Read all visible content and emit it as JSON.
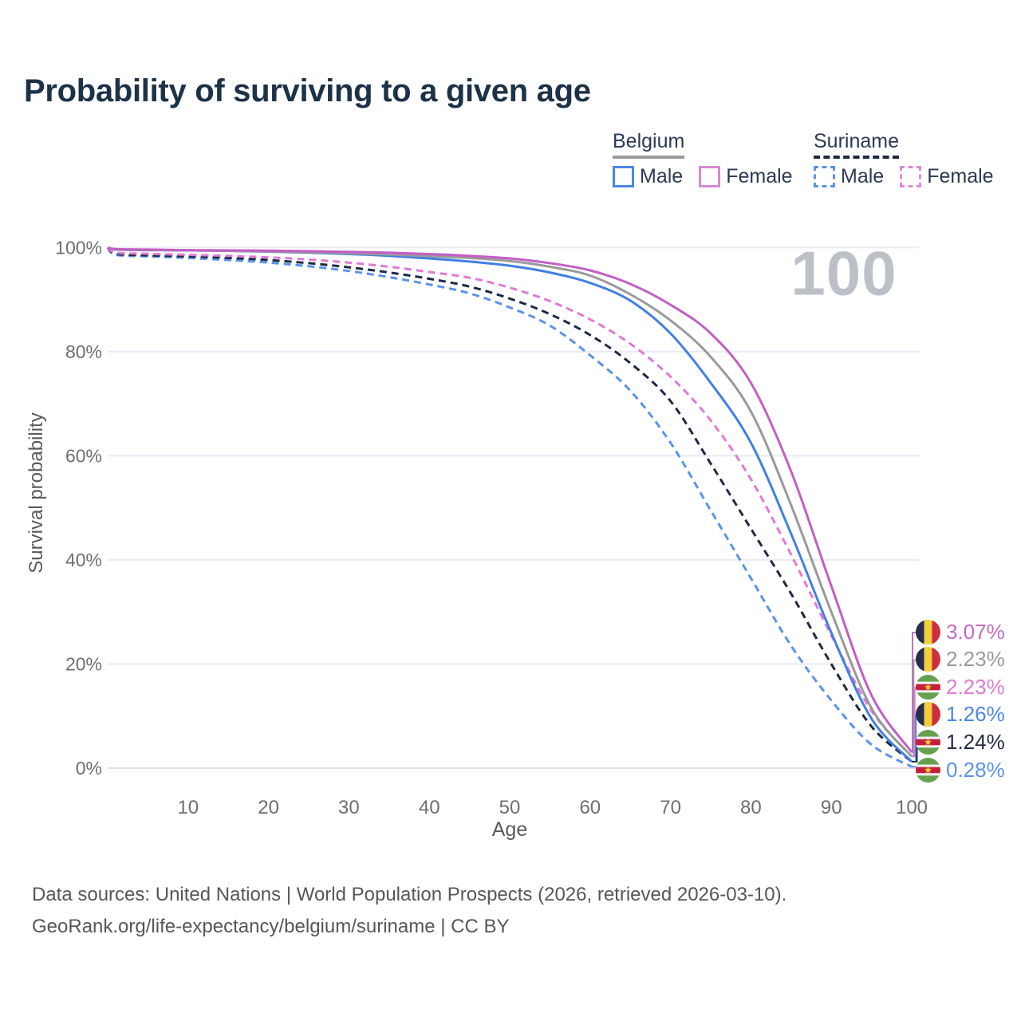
{
  "title": "Probability of surviving to a given age",
  "watermark": "100",
  "legend": {
    "groups": [
      {
        "country": "Belgium",
        "line_style": "solid",
        "underline_color": "#9a9a9a",
        "items": [
          {
            "label": "Male",
            "color": "#4a87e8",
            "dashed": false
          },
          {
            "label": "Female",
            "color": "#d689d3",
            "dashed": false
          }
        ]
      },
      {
        "country": "Suriname",
        "line_style": "dashed",
        "underline_color": "#1d2a44",
        "items": [
          {
            "label": "Male",
            "color": "#5b93ea",
            "dashed": true
          },
          {
            "label": "Female",
            "color": "#e08ad8",
            "dashed": true
          }
        ]
      }
    ]
  },
  "axes": {
    "x_label": "Age",
    "y_label": "Survival probability",
    "x_ticks": [
      10,
      20,
      30,
      40,
      50,
      60,
      70,
      80,
      90,
      100
    ],
    "y_ticks": [
      {
        "value": 100,
        "label": "100%"
      },
      {
        "value": 80,
        "label": "80%"
      },
      {
        "value": 60,
        "label": "60%"
      },
      {
        "value": 40,
        "label": "40%"
      },
      {
        "value": 20,
        "label": "20%"
      },
      {
        "value": 0,
        "label": "0%"
      }
    ],
    "x_range": [
      0,
      100
    ],
    "y_range": [
      0,
      100
    ],
    "grid": true
  },
  "chart_data": {
    "type": "line",
    "title": "Probability of surviving to a given age",
    "xlabel": "Age",
    "ylabel": "Survival probability",
    "x": [
      0,
      1,
      5,
      10,
      15,
      20,
      25,
      30,
      35,
      40,
      45,
      50,
      55,
      60,
      65,
      70,
      75,
      80,
      85,
      90,
      95,
      100
    ],
    "series": [
      {
        "name": "Suriname Male",
        "country": "Suriname",
        "sex": "Male",
        "color": "#5b93ea",
        "dash": true,
        "end_value_label": "0.28%",
        "values": [
          100,
          98.6,
          98.3,
          98.0,
          97.6,
          97.1,
          96.4,
          95.5,
          94.3,
          92.9,
          91.2,
          88.5,
          85.0,
          79.3,
          72.5,
          62.5,
          49.5,
          36.5,
          23.5,
          13.0,
          4.5,
          0.28
        ]
      },
      {
        "name": "Suriname",
        "country": "Suriname",
        "sex": "Both",
        "color": "#1d2a44",
        "dash": true,
        "end_value_label": "1.24%",
        "values": [
          100,
          98.8,
          98.5,
          98.3,
          98.0,
          97.6,
          97.0,
          96.2,
          95.2,
          94.0,
          92.5,
          90.2,
          87.2,
          83.2,
          77.8,
          70.5,
          58.5,
          46.0,
          33.5,
          20.0,
          8.0,
          1.24
        ]
      },
      {
        "name": "Suriname Female",
        "country": "Suriname",
        "sex": "Female",
        "color": "#e07ad6",
        "dash": true,
        "end_value_label": "2.23%",
        "values": [
          100,
          99.0,
          98.8,
          98.6,
          98.4,
          98.1,
          97.7,
          97.1,
          96.3,
          95.3,
          94.2,
          92.3,
          89.7,
          86.2,
          81.5,
          75.2,
          66.8,
          55.5,
          41.0,
          25.5,
          11.0,
          2.23
        ]
      },
      {
        "name": "Belgium Male",
        "country": "Belgium",
        "sex": "Male",
        "color": "#4080e4",
        "dash": false,
        "end_value_label": "1.26%",
        "values": [
          100,
          99.6,
          99.5,
          99.45,
          99.35,
          99.2,
          99.0,
          98.75,
          98.4,
          97.9,
          97.3,
          96.5,
          95.2,
          93.2,
          89.8,
          83.5,
          74.0,
          62.5,
          45.0,
          26.0,
          9.5,
          1.26
        ]
      },
      {
        "name": "Belgium",
        "country": "Belgium",
        "sex": "Both",
        "color": "#9a9a9a",
        "dash": false,
        "end_value_label": "2.23%",
        "values": [
          100,
          99.65,
          99.55,
          99.45,
          99.35,
          99.25,
          99.1,
          98.9,
          98.65,
          98.35,
          98.0,
          97.4,
          96.3,
          94.6,
          91.0,
          86.0,
          79.0,
          68.5,
          50.5,
          30.0,
          11.5,
          2.23
        ]
      },
      {
        "name": "Belgium Female",
        "country": "Belgium",
        "sex": "Female",
        "color": "#c25fc5",
        "dash": false,
        "end_value_label": "3.07%",
        "values": [
          100,
          99.7,
          99.6,
          99.5,
          99.45,
          99.4,
          99.3,
          99.15,
          99.0,
          98.75,
          98.4,
          97.9,
          97.0,
          95.6,
          93.0,
          89.0,
          83.5,
          74.0,
          57.0,
          35.0,
          14.0,
          3.07
        ]
      }
    ]
  },
  "end_labels": [
    {
      "flag": "belgium",
      "value": "3.07%",
      "color": "#c46ac4",
      "series": "Belgium Female"
    },
    {
      "flag": "belgium",
      "value": "2.23%",
      "color": "#9a9a9a",
      "series": "Belgium"
    },
    {
      "flag": "suriname",
      "value": "2.23%",
      "color": "#e07ad6",
      "series": "Suriname Female"
    },
    {
      "flag": "belgium",
      "value": "1.26%",
      "color": "#4a87e8",
      "series": "Belgium Male"
    },
    {
      "flag": "suriname",
      "value": "1.24%",
      "color": "#232c40",
      "series": "Suriname"
    },
    {
      "flag": "suriname",
      "value": "0.28%",
      "color": "#5b93ea",
      "series": "Suriname Male"
    }
  ],
  "footer": {
    "line1": "Data sources: United Nations | World Population Prospects (2026, retrieved 2026-03-10).",
    "line2": "GeoRank.org/life-expectancy/belgium/suriname | CC BY"
  }
}
